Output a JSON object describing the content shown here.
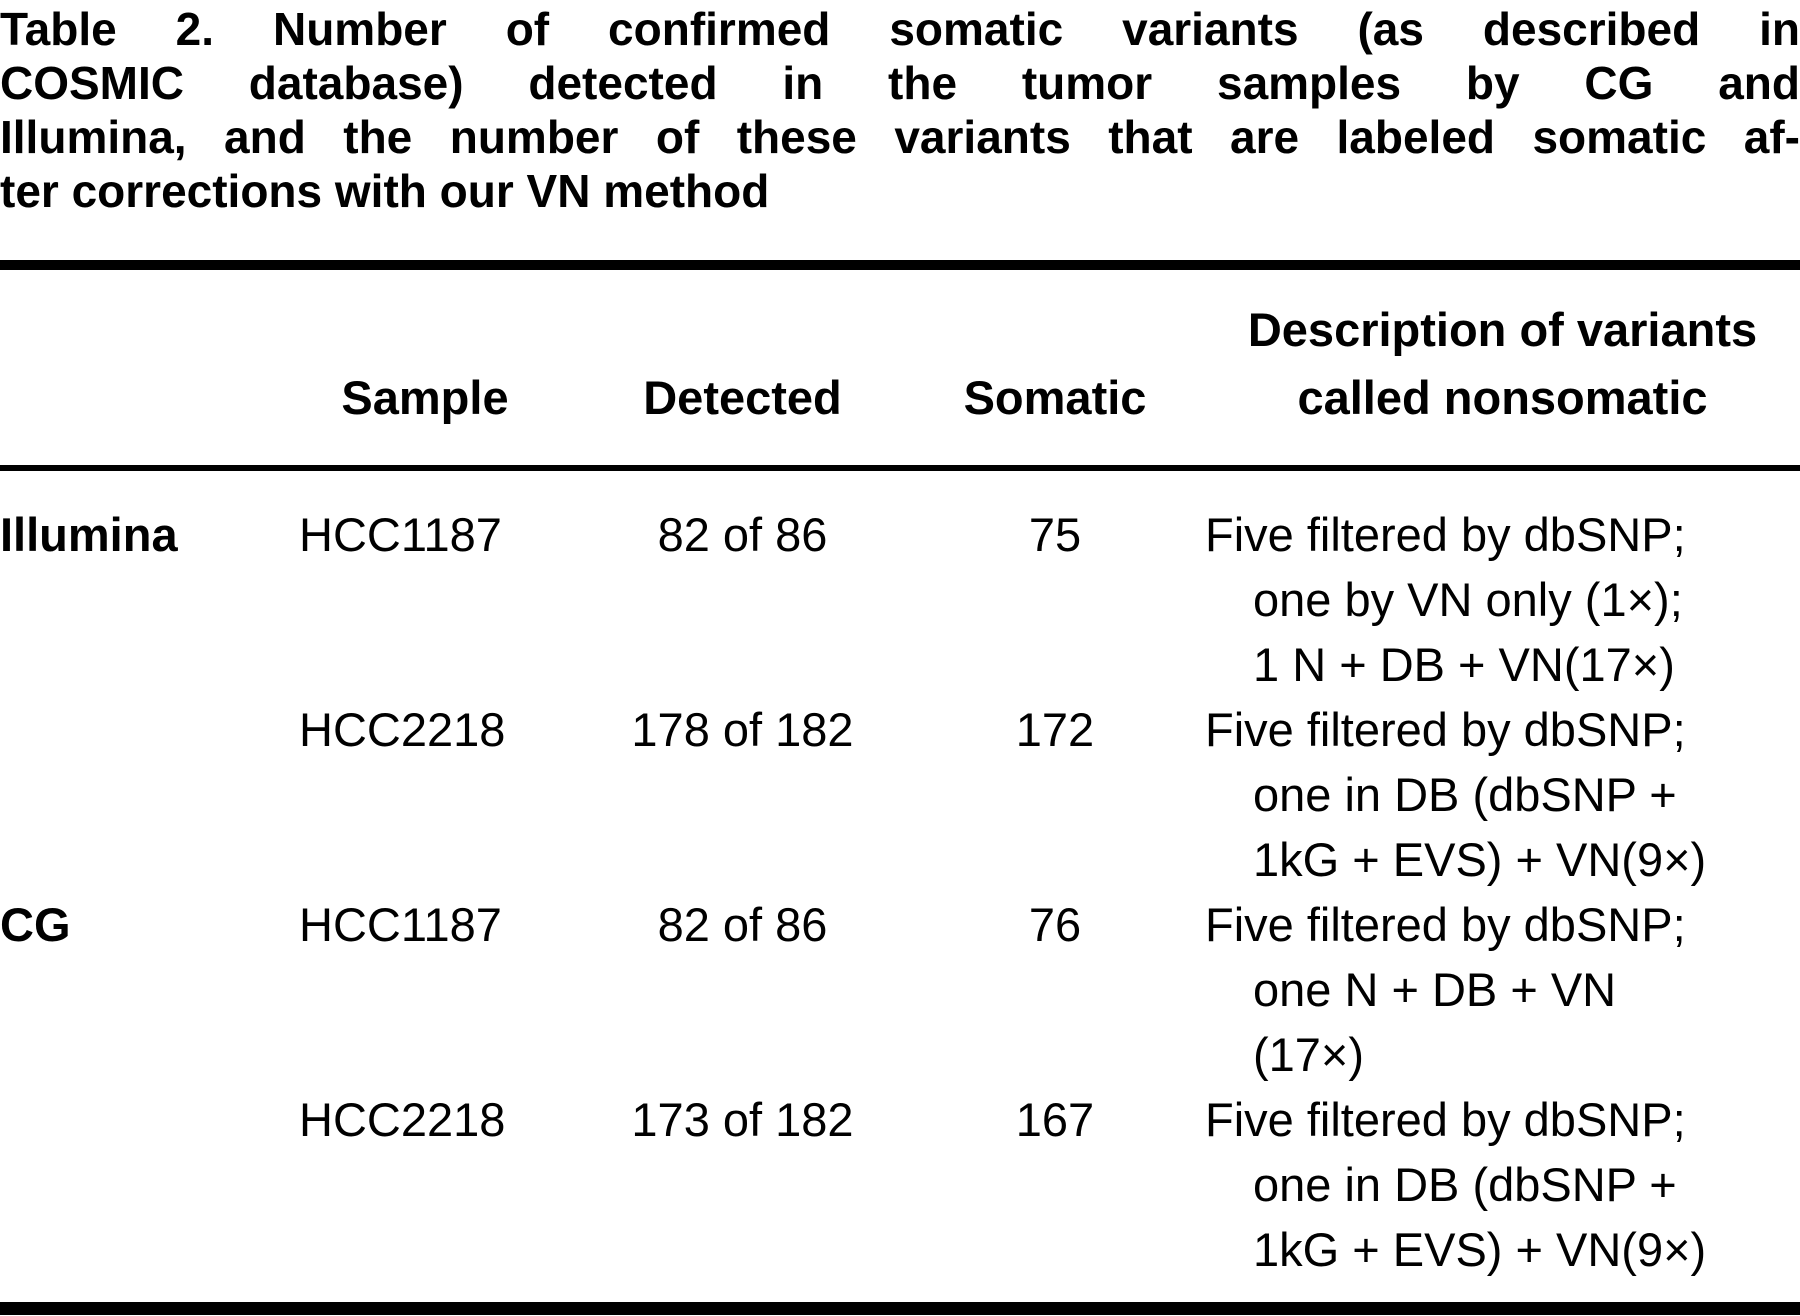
{
  "title": {
    "label": "Table 2.",
    "lines": [
      "Number of confirmed somatic variants (as described in",
      "COSMIC database) detected in the tumor samples by CG and",
      "Illumina, and the number of these variants that are labeled somatic af-",
      "ter corrections with our VN method"
    ]
  },
  "table": {
    "headers": {
      "group": "",
      "sample": "Sample",
      "detected": "Detected",
      "somatic": "Somatic",
      "description_line1": "Description of variants",
      "description_line2": "called nonsomatic"
    },
    "rows": [
      {
        "group": "Illumina",
        "sample": "HCC1187",
        "detected": "82 of 86",
        "somatic": "75",
        "desc": [
          "Five filtered by dbSNP;",
          "one by VN only (1×);",
          "1 N + DB + VN(17×)"
        ]
      },
      {
        "group": "",
        "sample": "HCC2218",
        "detected": "178 of 182",
        "somatic": "172",
        "desc": [
          "Five filtered by dbSNP;",
          "one in DB (dbSNP +",
          "1kG + EVS) + VN(9×)"
        ]
      },
      {
        "group": "CG",
        "sample": "HCC1187",
        "detected": "82 of 86",
        "somatic": "76",
        "desc": [
          "Five filtered by dbSNP;",
          "one N + DB + VN",
          "(17×)"
        ]
      },
      {
        "group": "",
        "sample": "HCC2218",
        "detected": "173 of 182",
        "somatic": "167",
        "desc": [
          "Five filtered by dbSNP;",
          "one in DB (dbSNP +",
          "1kG + EVS) + VN(9×)"
        ]
      }
    ]
  },
  "colors": {
    "text": "#000000",
    "background": "#ffffff",
    "rule": "#000000"
  }
}
